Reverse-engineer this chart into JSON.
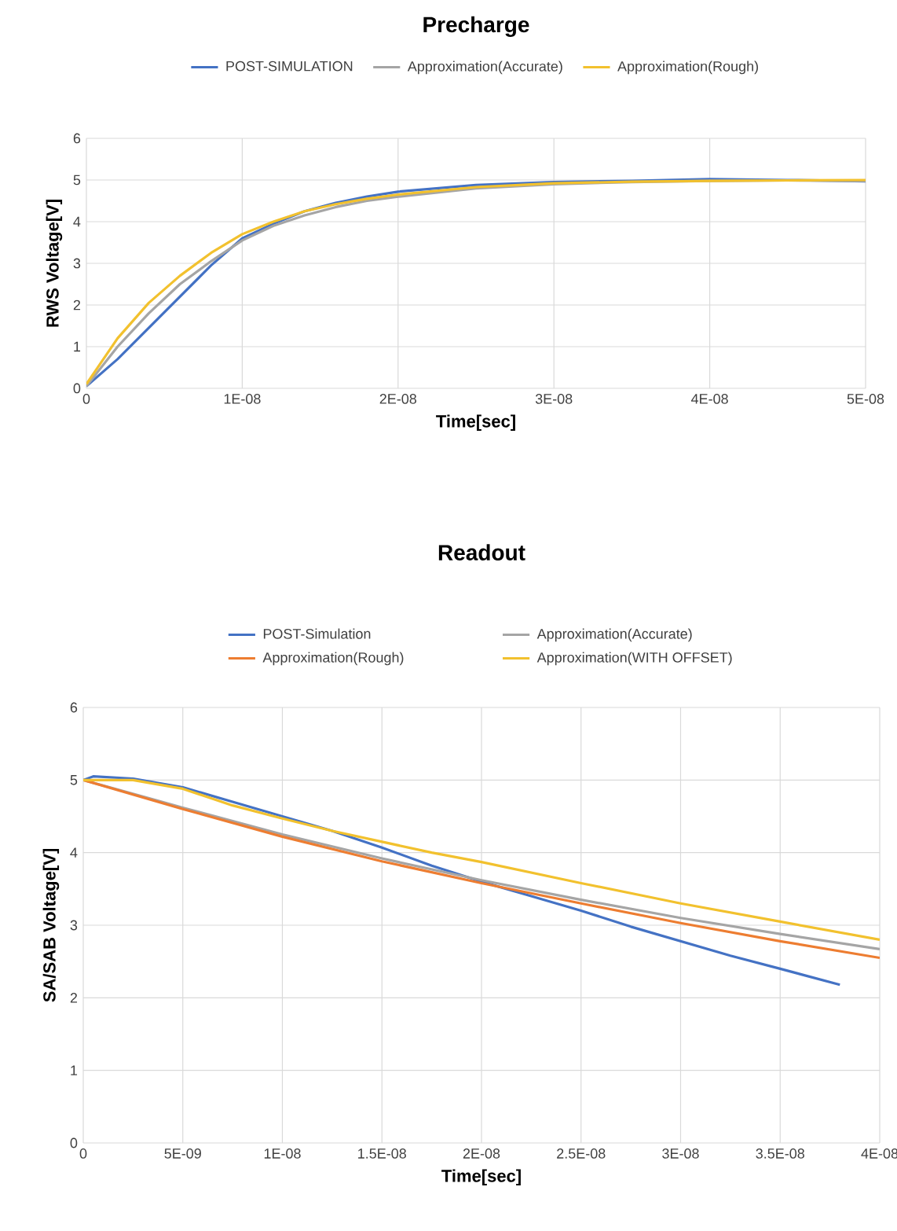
{
  "chart_data": [
    {
      "type": "line",
      "title": "Precharge",
      "xlabel": "Time[sec]",
      "ylabel": "RWS Voltage[V]",
      "legend": "top",
      "grid": true,
      "xlim": [
        0,
        5e-08
      ],
      "ylim": [
        0,
        6
      ],
      "xticks": [
        0,
        {
          "value": 1e-08,
          "label": "1E-08"
        },
        {
          "value": 2e-08,
          "label": "2E-08"
        },
        {
          "value": 3e-08,
          "label": "3E-08"
        },
        {
          "value": 4e-08,
          "label": "4E-08"
        },
        {
          "value": 5e-08,
          "label": "5E-08"
        }
      ],
      "yticks": [
        0,
        1,
        2,
        3,
        4,
        5,
        6
      ],
      "x": [
        0,
        2e-09,
        4e-09,
        6e-09,
        8e-09,
        1e-08,
        1.2e-08,
        1.4e-08,
        1.6e-08,
        1.8e-08,
        2e-08,
        2.5e-08,
        3e-08,
        3.5e-08,
        4e-08,
        4.5e-08,
        5e-08
      ],
      "series": [
        {
          "name": "POST-SIMULATION",
          "color": "#4472c4",
          "values": [
            0.05,
            0.7,
            1.45,
            2.2,
            2.95,
            3.6,
            3.95,
            4.25,
            4.45,
            4.6,
            4.72,
            4.88,
            4.95,
            4.98,
            5.02,
            5.0,
            4.97
          ]
        },
        {
          "name": "Approximation(Accurate)",
          "color": "#a5a5a5",
          "values": [
            0.05,
            1.0,
            1.8,
            2.5,
            3.05,
            3.55,
            3.9,
            4.15,
            4.35,
            4.5,
            4.6,
            4.8,
            4.9,
            4.95,
            4.98,
            4.99,
            4.98
          ]
        },
        {
          "name": "Approximation(Rough)",
          "color": "#f2c12e",
          "values": [
            0.1,
            1.2,
            2.05,
            2.7,
            3.25,
            3.7,
            4.0,
            4.25,
            4.42,
            4.55,
            4.65,
            4.83,
            4.92,
            4.96,
            4.98,
            4.99,
            5.0
          ]
        }
      ]
    },
    {
      "type": "line",
      "title": "Readout",
      "xlabel": "Time[sec]",
      "ylabel": "SA/SAB Voltage[V]",
      "legend": "top",
      "grid": true,
      "xlim": [
        0,
        4e-08
      ],
      "ylim": [
        0,
        6
      ],
      "xticks": [
        0,
        {
          "value": 5e-09,
          "label": "5E-09"
        },
        {
          "value": 1e-08,
          "label": "1E-08"
        },
        {
          "value": 1.5e-08,
          "label": "1.5E-08"
        },
        {
          "value": 2e-08,
          "label": "2E-08"
        },
        {
          "value": 2.5e-08,
          "label": "2.5E-08"
        },
        {
          "value": 3e-08,
          "label": "3E-08"
        },
        {
          "value": 3.5e-08,
          "label": "3.5E-08"
        },
        {
          "value": 4e-08,
          "label": "4E-08"
        }
      ],
      "yticks": [
        0,
        1,
        2,
        3,
        4,
        5,
        6
      ],
      "series": [
        {
          "name": "POST-Simulation",
          "color": "#4472c4",
          "x": [
            0,
            5e-10,
            2.5e-09,
            5e-09,
            7.5e-09,
            1e-08,
            1.25e-08,
            1.5e-08,
            1.75e-08,
            2e-08,
            2.25e-08,
            2.5e-08,
            2.75e-08,
            3e-08,
            3.25e-08,
            3.5e-08,
            3.8e-08
          ],
          "values": [
            5.0,
            5.05,
            5.02,
            4.9,
            4.7,
            4.5,
            4.3,
            4.07,
            3.82,
            3.6,
            3.4,
            3.2,
            2.98,
            2.78,
            2.58,
            2.4,
            2.18
          ]
        },
        {
          "name": "Approximation(Accurate)",
          "color": "#a5a5a5",
          "x": [
            0,
            5e-09,
            1e-08,
            1.5e-08,
            2e-08,
            2.5e-08,
            3e-08,
            3.5e-08,
            4e-08
          ],
          "values": [
            5.0,
            4.62,
            4.25,
            3.92,
            3.62,
            3.35,
            3.1,
            2.88,
            2.67
          ]
        },
        {
          "name": "Approximation(Rough)",
          "color": "#ed7d31",
          "x": [
            0,
            5e-09,
            1e-08,
            1.5e-08,
            2e-08,
            2.5e-08,
            3e-08,
            3.5e-08,
            4e-08
          ],
          "values": [
            5.0,
            4.6,
            4.22,
            3.88,
            3.58,
            3.3,
            3.03,
            2.78,
            2.55
          ]
        },
        {
          "name": "Approximation(WITH OFFSET)",
          "color": "#f2c12e",
          "x": [
            0,
            2.5e-09,
            5e-09,
            7.5e-09,
            1e-08,
            1.25e-08,
            1.5e-08,
            1.75e-08,
            2e-08,
            2.5e-08,
            3e-08,
            3.5e-08,
            4e-08
          ],
          "values": [
            5.0,
            5.0,
            4.88,
            4.65,
            4.47,
            4.3,
            4.15,
            4.0,
            3.87,
            3.58,
            3.3,
            3.05,
            2.8
          ]
        }
      ]
    }
  ]
}
